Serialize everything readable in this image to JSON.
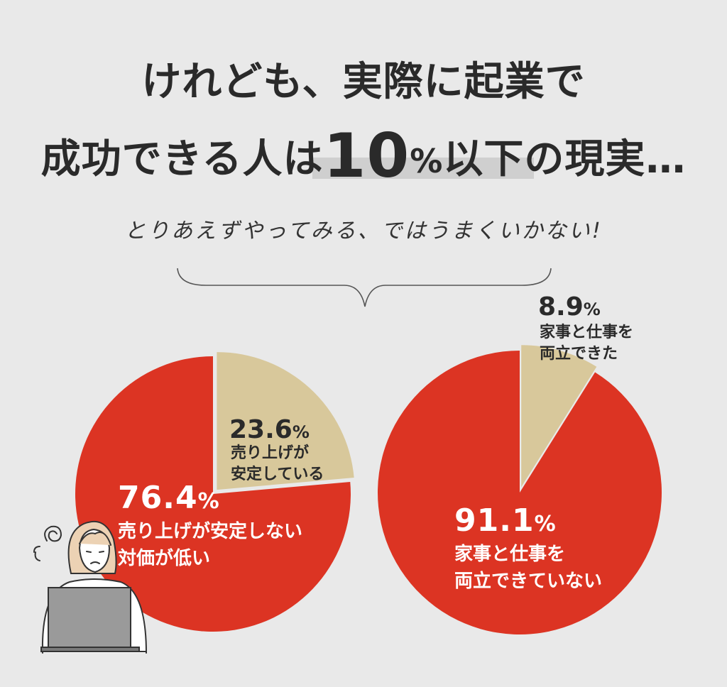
{
  "headline": {
    "line1": "けれども、実際に起業で",
    "line2_pre": "成功できる人は",
    "line2_num": "10",
    "line2_pct": "%",
    "line2_post": "以下の現実…"
  },
  "subline": "とりあえずやってみる、ではうまくいかない!",
  "colors": {
    "red": "#dc3423",
    "beige": "#d8c89b",
    "background": "#e9e9e9",
    "text": "#2a2a2a"
  },
  "chart_data": [
    {
      "type": "pie",
      "slices": [
        {
          "label": "売り上げが安定しない 対価が低い",
          "value": 76.4,
          "display": "76.4",
          "desc": [
            "売り上げが安定しない",
            "対価が低い"
          ],
          "color": "#dc3423"
        },
        {
          "label": "売り上げが安定している",
          "value": 23.6,
          "display": "23.6",
          "desc": [
            "売り上げが",
            "安定している"
          ],
          "color": "#d8c89b"
        }
      ]
    },
    {
      "type": "pie",
      "slices": [
        {
          "label": "家事と仕事を両立できていない",
          "value": 91.1,
          "display": "91.1",
          "desc": [
            "家事と仕事を",
            "両立できていない"
          ],
          "color": "#dc3423"
        },
        {
          "label": "家事と仕事を両立できた",
          "value": 8.9,
          "display": "8.9",
          "desc": [
            "家事と仕事を",
            "両立できた"
          ],
          "color": "#d8c89b"
        }
      ]
    }
  ],
  "illustration": "worried-woman-with-laptop-icon"
}
